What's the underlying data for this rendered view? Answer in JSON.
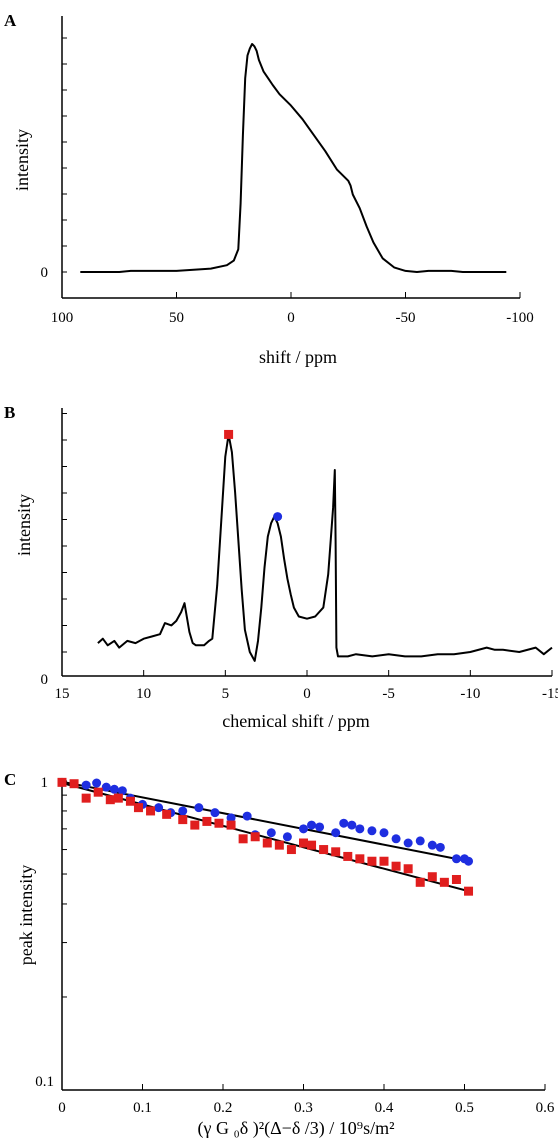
{
  "chart_data": [
    {
      "panel": "A",
      "type": "line",
      "xlabel": "shift / ppm",
      "ylabel": "intensity",
      "xlim": [
        100,
        -100
      ],
      "xticks": [
        "100",
        "50",
        "0",
        "-50",
        "-100"
      ],
      "yticks": [
        "0"
      ],
      "x": [
        92,
        75,
        70,
        50,
        35,
        28,
        25,
        23,
        22,
        21,
        20,
        19,
        18,
        17,
        16,
        15,
        14,
        12,
        10,
        8,
        5,
        0,
        -5,
        -10,
        -15,
        -20,
        -25,
        -26,
        -27,
        -30,
        -33,
        -36,
        -40,
        -45,
        -50,
        -55,
        -60,
        -70,
        -75,
        -80,
        -94
      ],
      "y": [
        0,
        0,
        0.005,
        0.005,
        0.015,
        0.03,
        0.05,
        0.1,
        0.3,
        0.6,
        0.85,
        0.95,
        0.98,
        1.0,
        0.99,
        0.97,
        0.93,
        0.88,
        0.85,
        0.82,
        0.78,
        0.73,
        0.67,
        0.6,
        0.53,
        0.45,
        0.4,
        0.38,
        0.34,
        0.28,
        0.2,
        0.13,
        0.06,
        0.02,
        0.005,
        0,
        0.005,
        0.005,
        0,
        0,
        0
      ]
    },
    {
      "panel": "B",
      "type": "line",
      "xlabel": "chemical shift / ppm",
      "ylabel": "intensity",
      "xlim": [
        15,
        -15
      ],
      "xticks": [
        "15",
        "10",
        "5",
        "0",
        "-5",
        "-10",
        "-15"
      ],
      "yticks": [
        "0"
      ],
      "x": [
        12.8,
        12.5,
        12.2,
        11.8,
        11.5,
        11,
        10.5,
        10,
        9.5,
        9,
        8.7,
        8.3,
        8,
        7.7,
        7.5,
        7.2,
        7,
        6.8,
        6.3,
        6,
        5.8,
        5.5,
        5.2,
        5,
        4.8,
        4.6,
        4.4,
        4.2,
        4,
        3.8,
        3.5,
        3.2,
        3,
        2.8,
        2.6,
        2.4,
        2.2,
        2,
        1.8,
        1.6,
        1.4,
        1.2,
        1,
        0.8,
        0.5,
        0,
        -0.5,
        -1,
        -1.3,
        -1.6,
        -1.7,
        -1.75,
        -1.8,
        -1.9,
        -2.5,
        -3,
        -4,
        -5,
        -6,
        -7,
        -8,
        -9,
        -10,
        -11,
        -11.5,
        -12,
        -13,
        -14,
        -14.5,
        -15
      ],
      "y": [
        0.04,
        0.06,
        0.03,
        0.05,
        0.02,
        0.05,
        0.04,
        0.06,
        0.07,
        0.08,
        0.13,
        0.12,
        0.14,
        0.18,
        0.22,
        0.09,
        0.04,
        0.03,
        0.03,
        0.05,
        0.06,
        0.3,
        0.65,
        0.88,
        0.98,
        0.9,
        0.72,
        0.5,
        0.28,
        0.1,
        0.0,
        -0.04,
        0.05,
        0.2,
        0.38,
        0.52,
        0.58,
        0.61,
        0.58,
        0.52,
        0.42,
        0.33,
        0.26,
        0.2,
        0.16,
        0.15,
        0.16,
        0.2,
        0.35,
        0.65,
        0.82,
        0.5,
        0.02,
        -0.02,
        -0.02,
        -0.01,
        -0.02,
        -0.01,
        -0.02,
        -0.02,
        -0.01,
        -0.01,
        0.0,
        0.02,
        0.01,
        0.01,
        0.0,
        0.02,
        -0.01,
        0.02
      ],
      "markers": [
        {
          "x": 4.8,
          "y": 0.98,
          "color": "#e01e1e",
          "shape": "square"
        },
        {
          "x": 1.8,
          "y": 0.61,
          "color": "#1e2ee0",
          "shape": "circle"
        }
      ]
    },
    {
      "panel": "C",
      "type": "scatter",
      "xlabel": "(γ G ₀δ )²(Δ−δ /3) / 10⁹s/m²",
      "ylabel": "peak intensity",
      "xlim": [
        0,
        0.6
      ],
      "ylim": [
        0.1,
        1
      ],
      "yscale": "log",
      "xticks": [
        "0",
        "0.1",
        "0.2",
        "0.3",
        "0.4",
        "0.5",
        "0.6"
      ],
      "yticks": [
        "1",
        "0.1"
      ],
      "series": [
        {
          "color": "#1e2ee0",
          "marker": "circle",
          "x": [
            0.0,
            0.03,
            0.043,
            0.055,
            0.065,
            0.075,
            0.085,
            0.1,
            0.12,
            0.135,
            0.15,
            0.17,
            0.19,
            0.21,
            0.23,
            0.24,
            0.26,
            0.28,
            0.3,
            0.31,
            0.32,
            0.34,
            0.35,
            0.36,
            0.37,
            0.385,
            0.4,
            0.415,
            0.43,
            0.445,
            0.46,
            0.47,
            0.49,
            0.5,
            0.505
          ],
          "y": [
            0.99,
            0.97,
            0.985,
            0.955,
            0.94,
            0.93,
            0.88,
            0.84,
            0.82,
            0.79,
            0.8,
            0.82,
            0.79,
            0.76,
            0.77,
            0.67,
            0.68,
            0.66,
            0.7,
            0.72,
            0.71,
            0.68,
            0.73,
            0.72,
            0.7,
            0.69,
            0.68,
            0.65,
            0.63,
            0.64,
            0.62,
            0.61,
            0.56,
            0.56,
            0.55
          ]
        },
        {
          "color": "#e01e1e",
          "marker": "square",
          "x": [
            0.0,
            0.015,
            0.03,
            0.045,
            0.06,
            0.07,
            0.085,
            0.095,
            0.11,
            0.13,
            0.15,
            0.165,
            0.18,
            0.195,
            0.21,
            0.225,
            0.24,
            0.255,
            0.27,
            0.285,
            0.3,
            0.31,
            0.325,
            0.34,
            0.355,
            0.37,
            0.385,
            0.4,
            0.415,
            0.43,
            0.445,
            0.46,
            0.475,
            0.49,
            0.505
          ],
          "y": [
            0.99,
            0.98,
            0.88,
            0.92,
            0.87,
            0.88,
            0.86,
            0.82,
            0.8,
            0.78,
            0.75,
            0.72,
            0.74,
            0.73,
            0.72,
            0.65,
            0.66,
            0.63,
            0.62,
            0.6,
            0.63,
            0.62,
            0.6,
            0.59,
            0.57,
            0.56,
            0.55,
            0.55,
            0.53,
            0.52,
            0.47,
            0.49,
            0.47,
            0.48,
            0.44
          ]
        }
      ],
      "fit_lines": [
        {
          "x": [
            0.0,
            0.505
          ],
          "y": [
            0.995,
            0.55
          ]
        },
        {
          "x": [
            0.0,
            0.505
          ],
          "y": [
            0.985,
            0.44
          ]
        }
      ]
    }
  ]
}
